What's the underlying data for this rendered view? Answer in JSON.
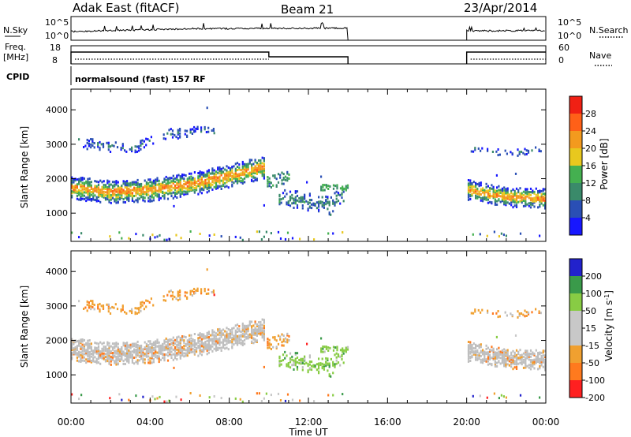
{
  "header": {
    "station": "Adak East (fitACF)",
    "beam": "Beam 21",
    "date": "23/Apr/2014"
  },
  "strip_labels": {
    "nsky": "N.Sky",
    "nsky_hi": "10^5",
    "nsky_lo": "10^0",
    "nsearch": "N.Search",
    "nsearch_hi": "10^5",
    "nsearch_lo": "10^0",
    "freq_line1": "Freq.",
    "freq_line2": "[MHz]",
    "freq_hi": "18",
    "freq_lo": "8",
    "nave": "Nave",
    "nave_hi": "60",
    "nave_lo": "0",
    "cpid": "CPID",
    "cpid_text": "normalsound (fast) 157 RF"
  },
  "colors": {
    "power_scale": [
      "#1717ff",
      "#2a4fb5",
      "#3a8a6a",
      "#44b050",
      "#e8c81e",
      "#f39a1e",
      "#ff6018",
      "#f02014"
    ],
    "velocity_scale": [
      "#ff2020",
      "#ff7a1e",
      "#f0a030",
      "#c8c8c8",
      "#c8c8c8",
      "#88cc44",
      "#3a9a4a",
      "#2222cc"
    ],
    "ground_scatter": "#bebebe"
  },
  "chart_data": [
    {
      "type": "heatmap",
      "name": "power",
      "xlabel": "",
      "ylabel": "Slant Range [km]",
      "x_ticks": [
        "00:00",
        "04:00",
        "08:00",
        "12:00",
        "16:00",
        "20:00",
        "00:00"
      ],
      "x_range_hours": [
        0,
        24
      ],
      "y_ticks": [
        1000,
        2000,
        3000,
        4000
      ],
      "ylim": [
        180,
        4600
      ],
      "colorbar_label": "Power [dB]",
      "colorbar_ticks": [
        4,
        8,
        12,
        16,
        20,
        24,
        28
      ],
      "colorbar_range": [
        0,
        32
      ],
      "data_gaps_hours": [
        [
          14.0,
          20.0
        ]
      ],
      "main_band_centre_km": [
        [
          0,
          1780
        ],
        [
          2,
          1650
        ],
        [
          4,
          1720
        ],
        [
          6,
          1880
        ],
        [
          8,
          2120
        ],
        [
          9.7,
          2380
        ]
      ],
      "main_band_centre_km_evening": [
        [
          20,
          1720
        ],
        [
          22,
          1500
        ],
        [
          24,
          1460
        ]
      ],
      "upper_band_centre_km": [
        [
          1,
          3050
        ],
        [
          3,
          2900
        ],
        [
          5,
          3350
        ],
        [
          7,
          3450
        ]
      ],
      "lower_patch_centre_km": [
        [
          11,
          1450
        ],
        [
          13,
          1250
        ],
        [
          14,
          1700
        ]
      ]
    },
    {
      "type": "heatmap",
      "name": "velocity",
      "xlabel": "Time UT",
      "ylabel": "Slant Range [km]",
      "x_ticks": [
        "00:00",
        "04:00",
        "08:00",
        "12:00",
        "16:00",
        "20:00",
        "00:00"
      ],
      "x_range_hours": [
        0,
        24
      ],
      "y_ticks": [
        1000,
        2000,
        3000,
        4000
      ],
      "ylim": [
        180,
        4600
      ],
      "colorbar_label": "Velocity [m s",
      "colorbar_label_sup": "-1",
      "colorbar_label_end": "]",
      "colorbar_ticks": [
        200,
        100,
        50,
        15,
        -15,
        -50,
        -100,
        -200
      ],
      "data_gaps_hours": [
        [
          14.0,
          20.0
        ]
      ]
    }
  ]
}
